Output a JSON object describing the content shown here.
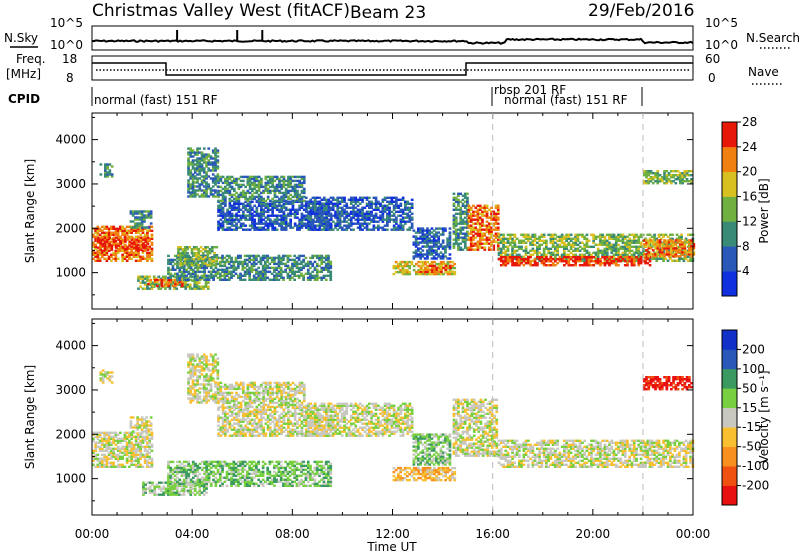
{
  "header": {
    "station": "Christmas Valley West (fitACF)",
    "beam": "Beam 23",
    "date": "29/Feb/2016"
  },
  "top_panels": {
    "nsky_label": "N.Sky",
    "nsky_ticks": [
      "10^5",
      "10^0"
    ],
    "nsearch_label": "N.Search",
    "nsearch_ticks": [
      "10^5",
      "10^0"
    ],
    "freq_label": "Freq.",
    "freq_unit": "[MHz]",
    "freq_ticks": [
      "18",
      "8"
    ],
    "nave_label": "Nave",
    "nave_ticks": [
      "60",
      "0"
    ],
    "cpid_label": "CPID",
    "cpid_segments": [
      {
        "start_hr": 0,
        "end_hr": 16,
        "text": "normal (fast) 151 RF"
      },
      {
        "start_hr": 16,
        "end_hr": 22,
        "text": "rbsp 201 RF"
      },
      {
        "start_hr": 16.3,
        "end_hr": 22,
        "text": "normal (fast) 151 RF"
      }
    ]
  },
  "chart_data": [
    {
      "type": "heatmap",
      "name": "power",
      "ylabel": "Slant Range [km]",
      "xlabel": "",
      "ylim": [
        180,
        4600
      ],
      "xlim_hours": [
        0,
        24
      ],
      "yticks": [
        1000,
        2000,
        3000,
        4000
      ],
      "colorbar": {
        "label": "Power [dB]",
        "ticks": [
          "4",
          "8",
          "12",
          "16",
          "20",
          "24",
          "28"
        ],
        "colors": [
          "#1030e0",
          "#2a58b8",
          "#3a8a78",
          "#6fb040",
          "#d8c020",
          "#f08010",
          "#e81808"
        ]
      },
      "regions": [
        {
          "t0": 0.0,
          "t1": 2.4,
          "r0": 1250,
          "r1": 2050,
          "level": 5
        },
        {
          "t0": 0.2,
          "t1": 2.2,
          "r0": 1500,
          "r1": 1800,
          "level": 6
        },
        {
          "t0": 0.3,
          "t1": 0.8,
          "r0": 3150,
          "r1": 3450,
          "level": 2
        },
        {
          "t0": 1.5,
          "t1": 2.4,
          "r0": 2000,
          "r1": 2400,
          "level": 2
        },
        {
          "t0": 1.8,
          "t1": 4.6,
          "r0": 620,
          "r1": 900,
          "level": 3
        },
        {
          "t0": 2.2,
          "t1": 3.6,
          "r0": 680,
          "r1": 820,
          "level": 5
        },
        {
          "t0": 3.0,
          "t1": 9.5,
          "r0": 820,
          "r1": 1400,
          "level": 2
        },
        {
          "t0": 3.4,
          "t1": 5.0,
          "r0": 1150,
          "r1": 1600,
          "level": 3
        },
        {
          "t0": 3.8,
          "t1": 5.0,
          "r0": 2700,
          "r1": 3800,
          "level": 2
        },
        {
          "t0": 5.0,
          "t1": 9.5,
          "r0": 1950,
          "r1": 2600,
          "level": 1
        },
        {
          "t0": 5.0,
          "t1": 8.5,
          "r0": 2600,
          "r1": 3150,
          "level": 2
        },
        {
          "t0": 8.5,
          "t1": 12.8,
          "r0": 1950,
          "r1": 2700,
          "level": 1
        },
        {
          "t0": 12.0,
          "t1": 14.5,
          "r0": 950,
          "r1": 1250,
          "level": 4
        },
        {
          "t0": 13.0,
          "t1": 14.4,
          "r0": 1000,
          "r1": 1150,
          "level": 5
        },
        {
          "t0": 12.8,
          "t1": 14.3,
          "r0": 1300,
          "r1": 2000,
          "level": 1
        },
        {
          "t0": 14.4,
          "t1": 15.0,
          "r0": 1500,
          "r1": 2800,
          "level": 2
        },
        {
          "t0": 15.0,
          "t1": 16.2,
          "r0": 1500,
          "r1": 2500,
          "level": 5
        },
        {
          "t0": 16.2,
          "t1": 24.0,
          "r0": 1250,
          "r1": 1850,
          "level": 3
        },
        {
          "t0": 16.2,
          "t1": 22.3,
          "r0": 1150,
          "r1": 1350,
          "level": 6
        },
        {
          "t0": 22.0,
          "t1": 24.0,
          "r0": 1350,
          "r1": 1750,
          "level": 5
        },
        {
          "t0": 22.0,
          "t1": 23.9,
          "r0": 3000,
          "r1": 3300,
          "level": 3
        }
      ]
    },
    {
      "type": "heatmap",
      "name": "velocity",
      "ylabel": "Slant Range [km]",
      "xlabel": "Time UT",
      "ylim": [
        180,
        4600
      ],
      "xlim_hours": [
        0,
        24
      ],
      "yticks": [
        1000,
        2000,
        3000,
        4000
      ],
      "xticks": [
        "00:00",
        "04:00",
        "08:00",
        "12:00",
        "16:00",
        "20:00",
        "00:00"
      ],
      "colorbar": {
        "label": "Velocity [m s⁻¹]",
        "ticks": [
          "-200",
          "-100",
          "-50",
          "-15",
          "15",
          "50",
          "100",
          "200"
        ],
        "colors": [
          "#e81010",
          "#f05010",
          "#f89020",
          "#f8c030",
          "#c8c8c0",
          "#78d040",
          "#3a9a60",
          "#2a58b8",
          "#1030c8"
        ]
      },
      "regions": [
        {
          "t0": 0.0,
          "t1": 2.4,
          "r0": 1250,
          "r1": 2050,
          "level": 4
        },
        {
          "t0": 0.3,
          "t1": 0.8,
          "r0": 3150,
          "r1": 3450,
          "level": 4
        },
        {
          "t0": 1.5,
          "t1": 2.4,
          "r0": 2000,
          "r1": 2400,
          "level": 4
        },
        {
          "t0": 2.0,
          "t1": 4.6,
          "r0": 620,
          "r1": 900,
          "level": 5
        },
        {
          "t0": 3.0,
          "t1": 9.5,
          "r0": 820,
          "r1": 1400,
          "level": 5
        },
        {
          "t0": 3.8,
          "t1": 5.0,
          "r0": 2700,
          "r1": 3800,
          "level": 4
        },
        {
          "t0": 5.0,
          "t1": 9.5,
          "r0": 1950,
          "r1": 2600,
          "level": 4
        },
        {
          "t0": 5.0,
          "t1": 8.5,
          "r0": 2600,
          "r1": 3150,
          "level": 4
        },
        {
          "t0": 8.5,
          "t1": 12.8,
          "r0": 1950,
          "r1": 2700,
          "level": 4
        },
        {
          "t0": 12.0,
          "t1": 14.5,
          "r0": 950,
          "r1": 1250,
          "level": 3
        },
        {
          "t0": 12.8,
          "t1": 14.3,
          "r0": 1300,
          "r1": 2000,
          "level": 5
        },
        {
          "t0": 14.4,
          "t1": 16.2,
          "r0": 1500,
          "r1": 2800,
          "level": 4
        },
        {
          "t0": 16.2,
          "t1": 24.0,
          "r0": 1250,
          "r1": 1850,
          "level": 4
        },
        {
          "t0": 22.0,
          "t1": 23.9,
          "r0": 3000,
          "r1": 3300,
          "level": 0
        }
      ]
    }
  ]
}
